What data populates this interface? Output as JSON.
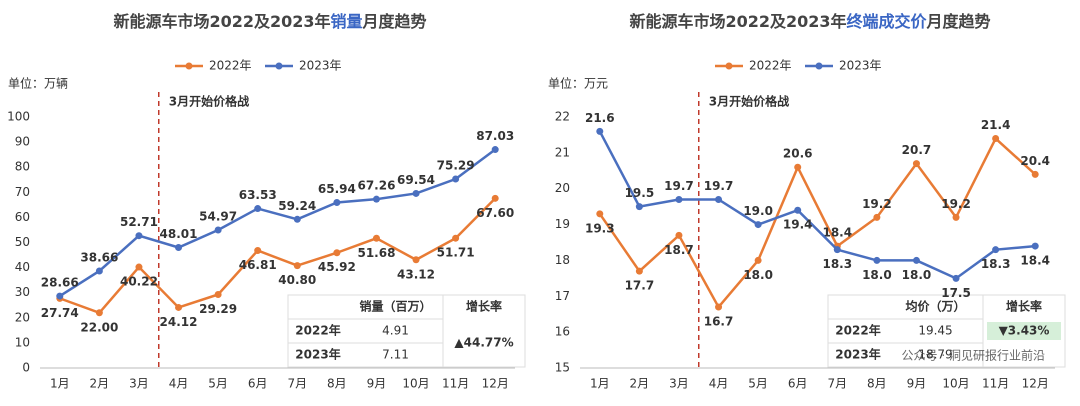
{
  "chart_data": [
    {
      "type": "line",
      "title": "新能源车市场2022及2023年销量月度趋势",
      "title_highlight": "销量",
      "highlight_color": "#3a66c4",
      "unit": "单位：万辆",
      "annotation": "3月开始价格战",
      "annotation_color": "#c0392b",
      "categories": [
        "1月",
        "2月",
        "3月",
        "4月",
        "5月",
        "6月",
        "7月",
        "8月",
        "9月",
        "10月",
        "11月",
        "12月"
      ],
      "series": [
        {
          "name": "2022年",
          "color": "#e87b35",
          "values": [
            27.74,
            22.0,
            40.22,
            24.12,
            29.29,
            46.81,
            40.8,
            45.92,
            51.68,
            43.12,
            51.71,
            67.6
          ],
          "value_labels": [
            "27.74",
            "22.00",
            "40.22",
            "24.12",
            "29.29",
            "46.81",
            "40.80",
            "45.92",
            "51.68",
            "43.12",
            "51.71",
            "67.60"
          ]
        },
        {
          "name": "2023年",
          "color": "#4a6fbf",
          "values": [
            28.66,
            38.66,
            52.71,
            48.01,
            54.97,
            63.53,
            59.24,
            65.94,
            67.26,
            69.54,
            75.29,
            87.03
          ],
          "value_labels": [
            "28.66",
            "38.66",
            "52.71",
            "48.01",
            "54.97",
            "63.53",
            "59.24",
            "65.94",
            "67.26",
            "69.54",
            "75.29",
            "87.03"
          ]
        }
      ],
      "ylim": [
        0,
        100
      ],
      "yticks": [
        0,
        10,
        20,
        30,
        40,
        50,
        60,
        70,
        80,
        90,
        100
      ],
      "grid": false,
      "table": {
        "columns": [
          "销量（百万）",
          "增长率"
        ],
        "rows": [
          {
            "label": "2022年",
            "value": "4.91"
          },
          {
            "label": "2023年",
            "value": "7.11"
          }
        ],
        "growth": "▲44.77%",
        "growth_color": "#c0392b"
      }
    },
    {
      "type": "line",
      "title": "新能源车市场2022及2023年终端成交价月度趋势",
      "title_highlight": "终端成交价",
      "highlight_color": "#3a66c4",
      "unit": "单位：万元",
      "annotation": "3月开始价格战",
      "annotation_color": "#c0392b",
      "categories": [
        "1月",
        "2月",
        "3月",
        "4月",
        "5月",
        "6月",
        "7月",
        "8月",
        "9月",
        "10月",
        "11月",
        "12月"
      ],
      "series": [
        {
          "name": "2022年",
          "color": "#e87b35",
          "values": [
            19.3,
            17.7,
            18.7,
            16.7,
            18.0,
            20.6,
            18.4,
            19.2,
            20.7,
            19.2,
            21.4,
            20.4
          ],
          "value_labels": [
            "19.3",
            "17.7",
            "18.7",
            "16.7",
            "18.0",
            "20.6",
            "18.4",
            "19.2",
            "20.7",
            "19.2",
            "21.4",
            "20.4"
          ]
        },
        {
          "name": "2023年",
          "color": "#4a6fbf",
          "values": [
            21.6,
            19.5,
            19.7,
            19.7,
            19.0,
            19.4,
            18.3,
            18.0,
            18.0,
            17.5,
            18.3,
            18.4
          ],
          "value_labels": [
            "21.6",
            "19.5",
            "19.7",
            "19.7",
            "19.0",
            "19.4",
            "18.3",
            "18.0",
            "18.0",
            "17.5",
            "18.3",
            "18.4"
          ]
        }
      ],
      "ylim": [
        15,
        22
      ],
      "yticks": [
        15,
        16,
        17,
        18,
        19,
        20,
        21,
        22
      ],
      "grid": false,
      "table": {
        "columns": [
          "均价（万）",
          "增长率"
        ],
        "rows": [
          {
            "label": "2022年",
            "value": "19.45"
          },
          {
            "label": "2023年",
            "value": "18.79"
          }
        ],
        "growth": "▼3.43%",
        "growth_color": "#2e9e4f",
        "growth_background": "#d6efd9"
      }
    }
  ],
  "watermark": "公众号 · 洞见研报行业前沿"
}
